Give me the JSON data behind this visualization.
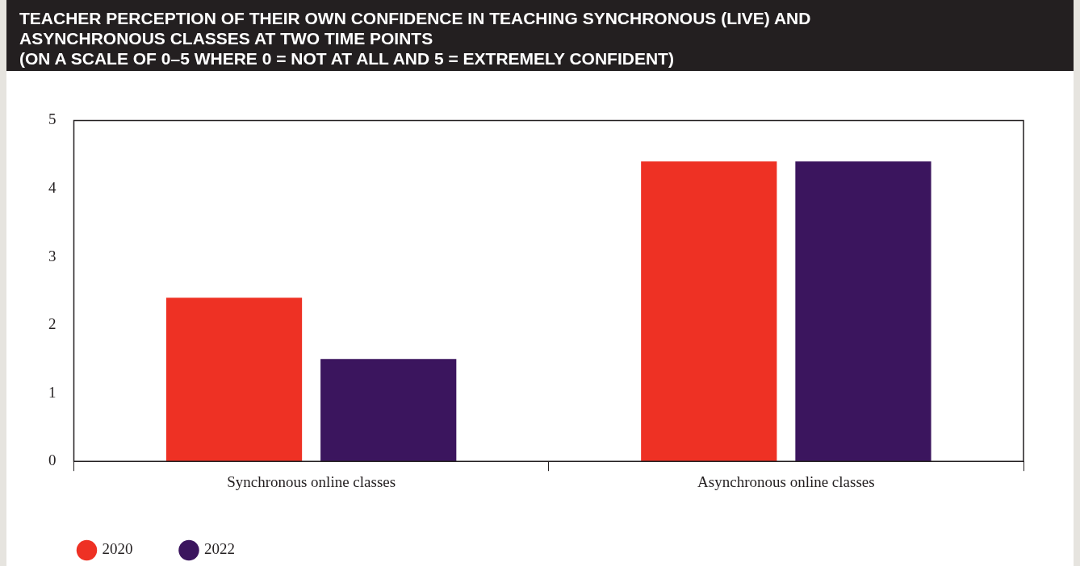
{
  "chart_data": {
    "type": "bar",
    "title": "TEACHER PERCEPTION OF THEIR OWN CONFIDENCE IN TEACHING SYNCHRONOUS (LIVE) AND ASYNCHRONOUS CLASSES AT TWO TIME POINTS",
    "subtitle": "(ON A SCALE OF 0–5 WHERE 0 = NOT AT ALL AND 5 = EXTREMELY CONFIDENT)",
    "categories": [
      "Synchronous online classes",
      "Asynchronous online classes"
    ],
    "series": [
      {
        "name": "2020",
        "color": "#ee3124",
        "values": [
          2.4,
          4.4
        ]
      },
      {
        "name": "2022",
        "color": "#3b155e",
        "values": [
          1.5,
          4.4
        ]
      }
    ],
    "ylim": [
      0,
      5
    ],
    "yticks": [
      0,
      1,
      2,
      3,
      4,
      5
    ],
    "grid": false,
    "legend": "bottom left"
  }
}
